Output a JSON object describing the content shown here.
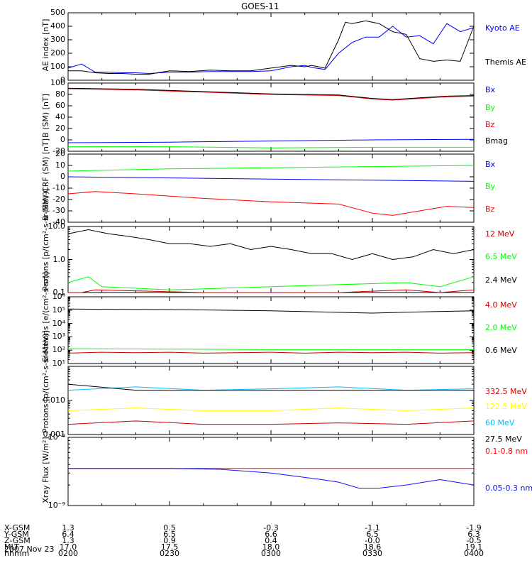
{
  "title": "GOES-11",
  "date": "2007 Nov 23",
  "time_axis": {
    "row_labels": [
      "X-GSM",
      "Y-GSM",
      "Z-GSM",
      "MLT",
      "hhmm"
    ],
    "columns": [
      {
        "values": [
          "1.3",
          "6.4",
          "1.3",
          "17.0",
          "0200"
        ]
      },
      {
        "values": [
          "0.5",
          "6.5",
          "0.9",
          "17.5",
          "0230"
        ]
      },
      {
        "values": [
          "-0.3",
          "6.6",
          "0.4",
          "18.0",
          "0300"
        ]
      },
      {
        "values": [
          "-1.1",
          "6.5",
          "-0.0",
          "18.6",
          "0330"
        ]
      },
      {
        "values": [
          "-1.9",
          "6.3",
          "-0.5",
          "19.1",
          "0400"
        ]
      }
    ]
  },
  "colors": {
    "black": "#000000",
    "blue": "#0000ff",
    "green": "#00ff00",
    "red": "#ff0000",
    "darkred": "#cc0000",
    "cyan": "#00bfff",
    "yellow": "#ffff00",
    "darkblue": "#1010ff"
  },
  "chart_data": [
    {
      "type": "line",
      "ylabel": "AE index [nT]",
      "ylim": [
        0,
        500
      ],
      "yticks": [
        0,
        100,
        200,
        300,
        400,
        500
      ],
      "series": [
        {
          "name": "Kyoto AE",
          "color": "#0000ff",
          "x": [
            0,
            4,
            8,
            12,
            16,
            20,
            24,
            30,
            36,
            42,
            48,
            54,
            60,
            66,
            70,
            72,
            76,
            80,
            84,
            88,
            92,
            96,
            100,
            104,
            108,
            112,
            116,
            120
          ],
          "values": [
            90,
            120,
            60,
            60,
            55,
            55,
            50,
            60,
            60,
            65,
            65,
            65,
            70,
            100,
            110,
            95,
            80,
            200,
            280,
            320,
            320,
            400,
            320,
            330,
            270,
            420,
            360,
            390
          ]
        },
        {
          "name": "Themis AE",
          "color": "#000000",
          "x": [
            0,
            4,
            8,
            12,
            16,
            20,
            24,
            30,
            36,
            42,
            48,
            54,
            60,
            66,
            70,
            72,
            76,
            80,
            82,
            84,
            88,
            92,
            96,
            100,
            104,
            108,
            112,
            116,
            120
          ],
          "values": [
            70,
            70,
            55,
            50,
            50,
            45,
            45,
            70,
            65,
            75,
            70,
            70,
            90,
            110,
            100,
            110,
            90,
            300,
            430,
            420,
            440,
            420,
            360,
            340,
            160,
            140,
            150,
            140,
            400
          ]
        }
      ]
    },
    {
      "type": "line",
      "ylabel": "B (SM) [nT]",
      "ylim": [
        -20,
        100
      ],
      "yticks": [
        -20,
        0,
        20,
        40,
        60,
        80,
        100
      ],
      "series": [
        {
          "name": "Bx",
          "color": "#0000ff",
          "x": [
            0,
            30,
            60,
            90,
            120
          ],
          "values": [
            -5,
            -4,
            -2,
            0,
            1
          ]
        },
        {
          "name": "By",
          "color": "#00ff00",
          "x": [
            0,
            30,
            60,
            90,
            120
          ],
          "values": [
            -12,
            -12,
            -14,
            -13,
            -13
          ]
        },
        {
          "name": "Bz",
          "color": "#ff0000",
          "x": [
            0,
            20,
            40,
            60,
            80,
            90,
            96,
            104,
            112,
            120
          ],
          "values": [
            90,
            88,
            84,
            80,
            78,
            72,
            70,
            73,
            76,
            77
          ]
        },
        {
          "name": "Bmag",
          "color": "#000000",
          "x": [
            0,
            20,
            40,
            60,
            80,
            90,
            96,
            104,
            112,
            120
          ],
          "values": [
            91,
            89,
            85,
            81,
            79,
            73,
            71,
            74,
            77,
            78
          ]
        }
      ]
    },
    {
      "type": "line",
      "ylabel": "B (SM)-CRF (SM) [nT]",
      "ylim": [
        -40,
        20
      ],
      "yticks": [
        -40,
        -30,
        -20,
        -10,
        0,
        10,
        20
      ],
      "series": [
        {
          "name": "Bx",
          "color": "#0000ff",
          "x": [
            0,
            30,
            60,
            90,
            120
          ],
          "values": [
            0,
            -1,
            -2,
            -3,
            -4
          ]
        },
        {
          "name": "By",
          "color": "#00ff00",
          "x": [
            0,
            30,
            60,
            90,
            120
          ],
          "values": [
            5,
            7,
            8,
            9,
            10
          ]
        },
        {
          "name": "Bz",
          "color": "#ff0000",
          "x": [
            0,
            8,
            20,
            40,
            60,
            80,
            90,
            96,
            104,
            112,
            120
          ],
          "values": [
            -15,
            -13,
            -15,
            -19,
            -22,
            -24,
            -32,
            -34,
            -30,
            -26,
            -27
          ]
        }
      ]
    },
    {
      "type": "line",
      "ylabel": "Protons [p/(cm²-s-sr-MeV)]",
      "ylog": true,
      "ylim": [
        0.1,
        10
      ],
      "yticks": [
        0.1,
        1,
        10
      ],
      "ytick_labels": [
        "0.1",
        "1.0",
        "10.0"
      ],
      "series": [
        {
          "name": "12 MeV",
          "color": "#cc0000",
          "x": [
            0,
            4,
            8,
            40,
            80,
            100,
            110,
            120
          ],
          "values": [
            0.1,
            0.1,
            0.12,
            0.1,
            0.1,
            0.12,
            0.1,
            0.12
          ]
        },
        {
          "name": "6.5 MeV",
          "color": "#00ff00",
          "x": [
            0,
            6,
            10,
            30,
            60,
            100,
            110,
            120
          ],
          "values": [
            0.2,
            0.3,
            0.15,
            0.12,
            0.15,
            0.2,
            0.15,
            0.3
          ]
        },
        {
          "name": "2.4 MeV",
          "color": "#000000",
          "x": [
            0,
            6,
            12,
            18,
            24,
            30,
            36,
            42,
            48,
            54,
            60,
            66,
            72,
            78,
            84,
            90,
            96,
            102,
            108,
            114,
            120
          ],
          "values": [
            6,
            8,
            6,
            5,
            4,
            3,
            3,
            2.5,
            3,
            2,
            2.5,
            2,
            1.5,
            1.5,
            1,
            1.5,
            1,
            1.2,
            2,
            1.5,
            2
          ]
        }
      ]
    },
    {
      "type": "line",
      "ylabel": "Electrons [e/(cm²-s-sr)]",
      "ylog": true,
      "ylim": [
        10,
        1000000
      ],
      "yticks": [
        10,
        100,
        1000,
        10000,
        100000,
        1000000
      ],
      "ytick_labels": [
        "10¹",
        "10²",
        "10³",
        "10⁴",
        "10⁵",
        "10⁶"
      ],
      "series": [
        {
          "name": "4.0 MeV",
          "color": "#cc0000",
          "x": [
            0,
            10,
            20,
            30,
            40,
            50,
            60,
            70,
            80,
            90,
            100,
            110,
            120
          ],
          "values": [
            60,
            70,
            65,
            70,
            60,
            65,
            70,
            60,
            70,
            65,
            70,
            60,
            65
          ]
        },
        {
          "name": "2.0 MeV",
          "color": "#00ff00",
          "x": [
            0,
            30,
            60,
            90,
            120
          ],
          "values": [
            130,
            120,
            110,
            110,
            110
          ]
        },
        {
          "name": "0.6 MeV",
          "color": "#000000",
          "x": [
            0,
            30,
            60,
            90,
            100,
            120
          ],
          "values": [
            120000,
            110000,
            90000,
            60000,
            70000,
            90000
          ]
        }
      ]
    },
    {
      "type": "line",
      "ylabel": "Protons [p/(cm²-s-sr-MeV)]",
      "ylog": true,
      "ylim": [
        0.001,
        0.1
      ],
      "yticks": [
        0.001,
        0.01
      ],
      "ytick_labels": [
        "0.001",
        "0.010"
      ],
      "series": [
        {
          "name": "332.5 MeV",
          "color": "#cc0000",
          "x": [
            0,
            20,
            40,
            60,
            80,
            100,
            120
          ],
          "values": [
            0.002,
            0.0025,
            0.002,
            0.002,
            0.0022,
            0.002,
            0.0025
          ]
        },
        {
          "name": "122.5 MeV",
          "color": "#ffff00",
          "x": [
            0,
            20,
            40,
            60,
            80,
            100,
            120
          ],
          "values": [
            0.005,
            0.006,
            0.005,
            0.005,
            0.006,
            0.005,
            0.006
          ]
        },
        {
          "name": "60 MeV",
          "color": "#00bfff",
          "x": [
            0,
            20,
            40,
            60,
            80,
            100,
            120
          ],
          "values": [
            0.02,
            0.025,
            0.02,
            0.022,
            0.025,
            0.02,
            0.022
          ]
        },
        {
          "name": "27.5 MeV",
          "color": "#000000",
          "x": [
            0,
            20,
            40,
            60,
            80,
            100,
            120
          ],
          "values": [
            0.03,
            0.02,
            0.02,
            0.02,
            0.02,
            0.02,
            0.02
          ]
        }
      ]
    },
    {
      "type": "line",
      "ylabel": "Xray Flux [W/m²]",
      "ylog": true,
      "ylim": [
        1e-09,
        1e-08
      ],
      "yticks": [
        1e-09,
        1e-08
      ],
      "ytick_labels": [
        "10⁻⁹",
        "10⁻⁸"
      ],
      "series": [
        {
          "name": "0.1-0.8 nm",
          "color": "#ff0000",
          "x": [
            0,
            120
          ],
          "values": [
            3.5e-09,
            3.5e-09
          ]
        },
        {
          "name": "0.05-0.3 nm",
          "color": "#1010ff",
          "x": [
            0,
            30,
            45,
            60,
            75,
            80,
            86,
            92,
            100,
            110,
            120
          ],
          "values": [
            3.5e-09,
            3.5e-09,
            3.4e-09,
            3e-09,
            2.4e-09,
            2.2e-09,
            1.8e-09,
            1.8e-09,
            2e-09,
            2.4e-09,
            2e-09
          ]
        }
      ]
    }
  ]
}
